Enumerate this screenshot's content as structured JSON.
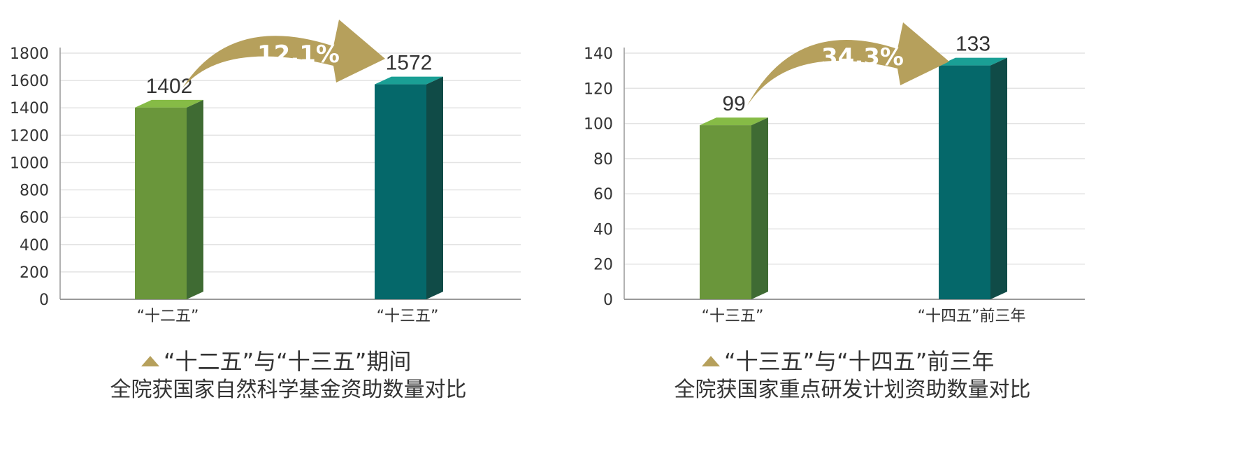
{
  "colors": {
    "series_a_front": "#6a963b",
    "series_a_side": "#3f6b33",
    "series_a_top": "#86bb46",
    "series_b_front": "#05686a",
    "series_b_side": "#104b47",
    "series_b_top": "#1a9f95",
    "arrow": "#b6a05c",
    "grid": "#e3e3e3",
    "axis": "#999999",
    "caption_marker": "#b6a05c"
  },
  "chart_data": [
    {
      "type": "bar",
      "categories": [
        "“十二五”",
        "“十三五”"
      ],
      "values": [
        1402,
        1572
      ],
      "value_labels": [
        "1402",
        "1572"
      ],
      "ylim": [
        0,
        1800
      ],
      "yticks": [
        0,
        200,
        400,
        600,
        800,
        1000,
        1200,
        1400,
        1600,
        1800
      ],
      "grid": true,
      "growth_label": "12.1%",
      "caption_line1": "“十二五”与“十三五”期间",
      "caption_line2": "全院获国家自然科学基金资助数量对比"
    },
    {
      "type": "bar",
      "categories": [
        "“十三五”",
        "“十四五”前三年"
      ],
      "values": [
        99,
        133
      ],
      "value_labels": [
        "99",
        "133"
      ],
      "ylim": [
        0,
        140
      ],
      "yticks": [
        0,
        20,
        40,
        60,
        80,
        100,
        120,
        140
      ],
      "grid": true,
      "growth_label": "34.3%",
      "caption_line1": "“十三五”与“十四五”前三年",
      "caption_line2": "全院获国家重点研发计划资助数量对比"
    }
  ]
}
